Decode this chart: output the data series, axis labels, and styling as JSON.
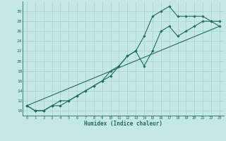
{
  "title": "",
  "xlabel": "Humidex (Indice chaleur)",
  "background_color": "#c5e8e5",
  "grid_color": "#a8d0cc",
  "line_color": "#1e6e5e",
  "xlim": [
    -0.5,
    23.5
  ],
  "ylim": [
    9,
    32
  ],
  "xticks": [
    0,
    1,
    2,
    3,
    4,
    5,
    6,
    7,
    8,
    9,
    10,
    11,
    12,
    13,
    14,
    15,
    16,
    17,
    18,
    19,
    20,
    21,
    22,
    23
  ],
  "yticks": [
    10,
    12,
    14,
    16,
    18,
    20,
    22,
    24,
    26,
    28,
    30
  ],
  "series1_x": [
    0,
    1,
    2,
    3,
    4,
    5,
    6,
    7,
    8,
    9,
    10,
    11,
    12,
    13,
    14,
    15,
    16,
    17,
    18,
    19,
    20,
    21,
    22,
    23
  ],
  "series1_y": [
    11,
    10,
    10,
    11,
    11,
    12,
    13,
    14,
    15,
    16,
    18,
    19,
    21,
    22,
    25,
    29,
    30,
    31,
    29,
    29,
    29,
    29,
    28,
    27
  ],
  "series2_x": [
    0,
    1,
    2,
    3,
    4,
    5,
    6,
    7,
    8,
    9,
    10,
    11,
    12,
    13,
    14,
    15,
    16,
    17,
    18,
    19,
    20,
    21,
    22,
    23
  ],
  "series2_y": [
    11,
    10,
    10,
    11,
    12,
    12,
    13,
    14,
    15,
    16,
    17,
    19,
    21,
    22,
    19,
    22,
    26,
    27,
    25,
    26,
    27,
    28,
    28,
    28
  ],
  "series3_x": [
    0,
    23
  ],
  "series3_y": [
    11,
    27
  ]
}
